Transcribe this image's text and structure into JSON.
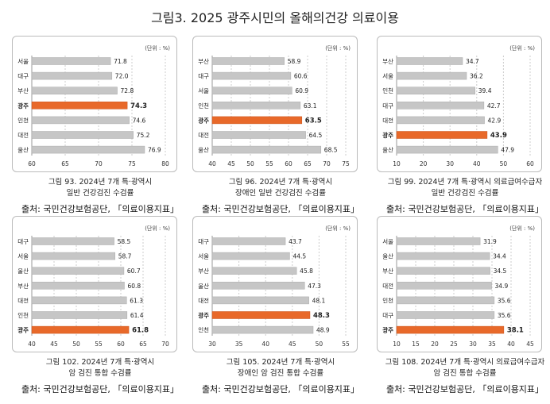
{
  "title": "그림3. 2025 광주시민의 올해의건강 의료이용",
  "unit": "(단위 : %)",
  "source": "출처: 국민건강보험공단, 「의료이용지표」",
  "colors": {
    "highlight": "#e8692a",
    "bar": "#c6c6c6"
  },
  "chart_data": [
    {
      "type": "bar",
      "orientation": "horizontal",
      "caption": [
        "그림 93. 2024년 7개 특·광역시",
        "일반 건강검진 수검률"
      ],
      "categories": [
        "서울",
        "대구",
        "부산",
        "광주",
        "인천",
        "대전",
        "울산"
      ],
      "values": [
        71.8,
        72.0,
        72.8,
        74.3,
        74.6,
        75.2,
        76.9
      ],
      "highlight": "광주",
      "xlim": [
        60,
        80
      ],
      "ticks": [
        60,
        65,
        70,
        75,
        80
      ]
    },
    {
      "type": "bar",
      "orientation": "horizontal",
      "caption": [
        "그림 96. 2024년 7개 특·광역시",
        "장애인 일반 건강검진 수검률"
      ],
      "categories": [
        "부산",
        "대구",
        "서울",
        "인천",
        "광주",
        "대전",
        "울산"
      ],
      "values": [
        58.9,
        60.6,
        60.9,
        63.1,
        63.5,
        64.5,
        68.5
      ],
      "highlight": "광주",
      "xlim": [
        40,
        75
      ],
      "ticks": [
        40,
        45,
        50,
        55,
        60,
        65,
        70,
        75
      ]
    },
    {
      "type": "bar",
      "orientation": "horizontal",
      "caption": [
        "그림 99. 2024년 7개 특·광역시 의료급여수급자",
        "일반 건강검진 수검률"
      ],
      "categories": [
        "부산",
        "서울",
        "인천",
        "대구",
        "대전",
        "광주",
        "울산"
      ],
      "values": [
        34.7,
        36.2,
        39.4,
        42.7,
        42.9,
        43.9,
        47.9
      ],
      "highlight": "광주",
      "xlim": [
        10,
        60
      ],
      "ticks": [
        10,
        20,
        30,
        40,
        50,
        60
      ]
    },
    {
      "type": "bar",
      "orientation": "horizontal",
      "caption": [
        "그림 102. 2024년 7개 특·광역시",
        "암 검진 통합 수검률"
      ],
      "categories": [
        "대구",
        "서울",
        "울산",
        "부산",
        "대전",
        "인천",
        "광주"
      ],
      "values": [
        58.5,
        58.7,
        60.7,
        60.8,
        61.3,
        61.4,
        61.8
      ],
      "highlight": "광주",
      "xlim": [
        40,
        70
      ],
      "ticks": [
        40,
        45,
        50,
        55,
        60,
        65,
        70
      ]
    },
    {
      "type": "bar",
      "orientation": "horizontal",
      "caption": [
        "그림 105. 2024년 7개 특·광역시",
        "장애인 암 검진 통합 수검률"
      ],
      "categories": [
        "대구",
        "서울",
        "부산",
        "울산",
        "대전",
        "광주",
        "인천"
      ],
      "values": [
        43.7,
        44.5,
        45.8,
        47.3,
        48.1,
        48.3,
        48.9
      ],
      "highlight": "광주",
      "xlim": [
        30,
        55
      ],
      "ticks": [
        30,
        35,
        40,
        45,
        50,
        55
      ]
    },
    {
      "type": "bar",
      "orientation": "horizontal",
      "caption": [
        "그림 108. 2024년 7개 특·광역시 의료급여수급자",
        "암 검진 통합 수검률"
      ],
      "categories": [
        "서울",
        "울산",
        "부산",
        "대전",
        "인천",
        "대구",
        "광주"
      ],
      "values": [
        31.9,
        34.4,
        34.5,
        34.9,
        35.6,
        35.6,
        38.1
      ],
      "highlight": "광주",
      "xlim": [
        10,
        45
      ],
      "ticks": [
        10,
        15,
        20,
        25,
        30,
        35,
        40,
        45
      ]
    }
  ]
}
